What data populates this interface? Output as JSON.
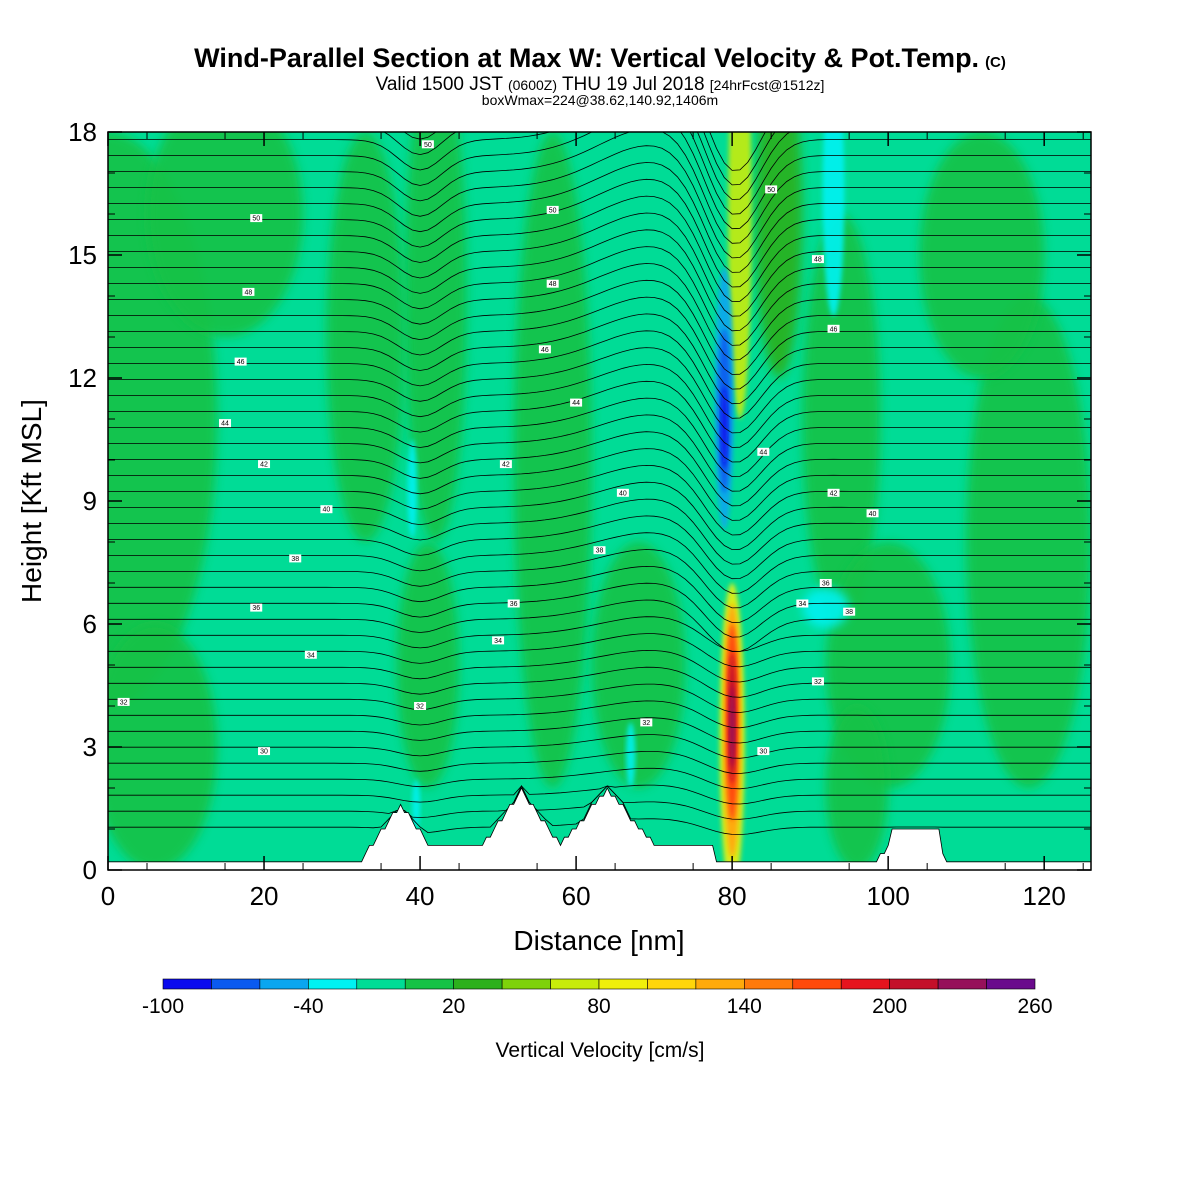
{
  "title": "Wind-Parallel Section at Max W: Vertical Velocity & Pot.Temp.",
  "title_mark": "(C)",
  "subtitle": {
    "prefix": "Valid 1500 JST",
    "utc": "(0600Z)",
    "date": "THU 19 Jul 2018",
    "forecast": "[24hrFcst@1512z]"
  },
  "subsubtitle": "boxWmax=224@38.62,140.92,1406m",
  "chart_data": {
    "type": "heatmap",
    "xlabel": "Distance [nm]",
    "ylabel": "Height [Kft MSL]",
    "xlim": [
      0,
      126
    ],
    "ylim": [
      0,
      18
    ],
    "xticks": [
      0,
      20,
      40,
      60,
      80,
      100,
      120
    ],
    "yticks": [
      0,
      3,
      6,
      9,
      12,
      15,
      18
    ],
    "colorbar": {
      "title": "Vertical Velocity [cm/s]",
      "levels": [
        -100,
        -80,
        -60,
        -40,
        -20,
        0,
        20,
        40,
        60,
        80,
        100,
        120,
        140,
        160,
        180,
        200,
        220,
        240,
        260
      ],
      "tick_labels": [
        -100,
        -40,
        20,
        80,
        140,
        200,
        260
      ],
      "colors": [
        "#0a0aee",
        "#0a5af0",
        "#0aa6f0",
        "#00f2f2",
        "#00dc96",
        "#16c246",
        "#2cb01c",
        "#7ed20a",
        "#c8ec0a",
        "#f0f00a",
        "#ffd60a",
        "#ffaa0a",
        "#ff7a0a",
        "#ff4a0a",
        "#e6141e",
        "#c4102a",
        "#96105a",
        "#6a0a8c"
      ]
    },
    "features": [
      {
        "kind": "updraft",
        "x": 80,
        "z_range": [
          0.5,
          6.8
        ],
        "w_max": 224
      },
      {
        "kind": "downdraft",
        "x": 79,
        "z_range": [
          6.8,
          14.8
        ],
        "w_min": -100
      }
    ],
    "terrain_peaks": [
      {
        "x": 37,
        "z": 1.6
      },
      {
        "x": 53,
        "z": 1.95
      },
      {
        "x": 64,
        "z": 1.95
      },
      {
        "x": 103,
        "z": 1.0
      }
    ],
    "isentrope_labels": [
      {
        "x": 2,
        "z": 4.1,
        "text": "32"
      },
      {
        "x": 20,
        "z": 2.9,
        "text": "30"
      },
      {
        "x": 40,
        "z": 4.0,
        "text": "32"
      },
      {
        "x": 26,
        "z": 5.25,
        "text": "34"
      },
      {
        "x": 19,
        "z": 6.4,
        "text": "36"
      },
      {
        "x": 24,
        "z": 7.6,
        "text": "38"
      },
      {
        "x": 28,
        "z": 8.8,
        "text": "40"
      },
      {
        "x": 20,
        "z": 9.9,
        "text": "42"
      },
      {
        "x": 15,
        "z": 10.9,
        "text": "44"
      },
      {
        "x": 17,
        "z": 12.4,
        "text": "46"
      },
      {
        "x": 18,
        "z": 14.1,
        "text": "48"
      },
      {
        "x": 19,
        "z": 15.9,
        "text": "50"
      },
      {
        "x": 50,
        "z": 5.6,
        "text": "34"
      },
      {
        "x": 52,
        "z": 6.5,
        "text": "36"
      },
      {
        "x": 63,
        "z": 7.8,
        "text": "38"
      },
      {
        "x": 66,
        "z": 9.2,
        "text": "40"
      },
      {
        "x": 51,
        "z": 9.9,
        "text": "42"
      },
      {
        "x": 60,
        "z": 11.4,
        "text": "44"
      },
      {
        "x": 56,
        "z": 12.7,
        "text": "46"
      },
      {
        "x": 57,
        "z": 14.3,
        "text": "48"
      },
      {
        "x": 57,
        "z": 16.1,
        "text": "50"
      },
      {
        "x": 41,
        "z": 17.7,
        "text": "50"
      },
      {
        "x": 69,
        "z": 3.6,
        "text": "32"
      },
      {
        "x": 84,
        "z": 2.9,
        "text": "30"
      },
      {
        "x": 91,
        "z": 4.6,
        "text": "32"
      },
      {
        "x": 89,
        "z": 6.5,
        "text": "34"
      },
      {
        "x": 92,
        "z": 7.0,
        "text": "36"
      },
      {
        "x": 95,
        "z": 6.3,
        "text": "38"
      },
      {
        "x": 93,
        "z": 9.2,
        "text": "42"
      },
      {
        "x": 84,
        "z": 10.2,
        "text": "44"
      },
      {
        "x": 98,
        "z": 8.7,
        "text": "40"
      },
      {
        "x": 93,
        "z": 13.2,
        "text": "46"
      },
      {
        "x": 91,
        "z": 14.9,
        "text": "48"
      },
      {
        "x": 85,
        "z": 16.6,
        "text": "50"
      }
    ]
  }
}
